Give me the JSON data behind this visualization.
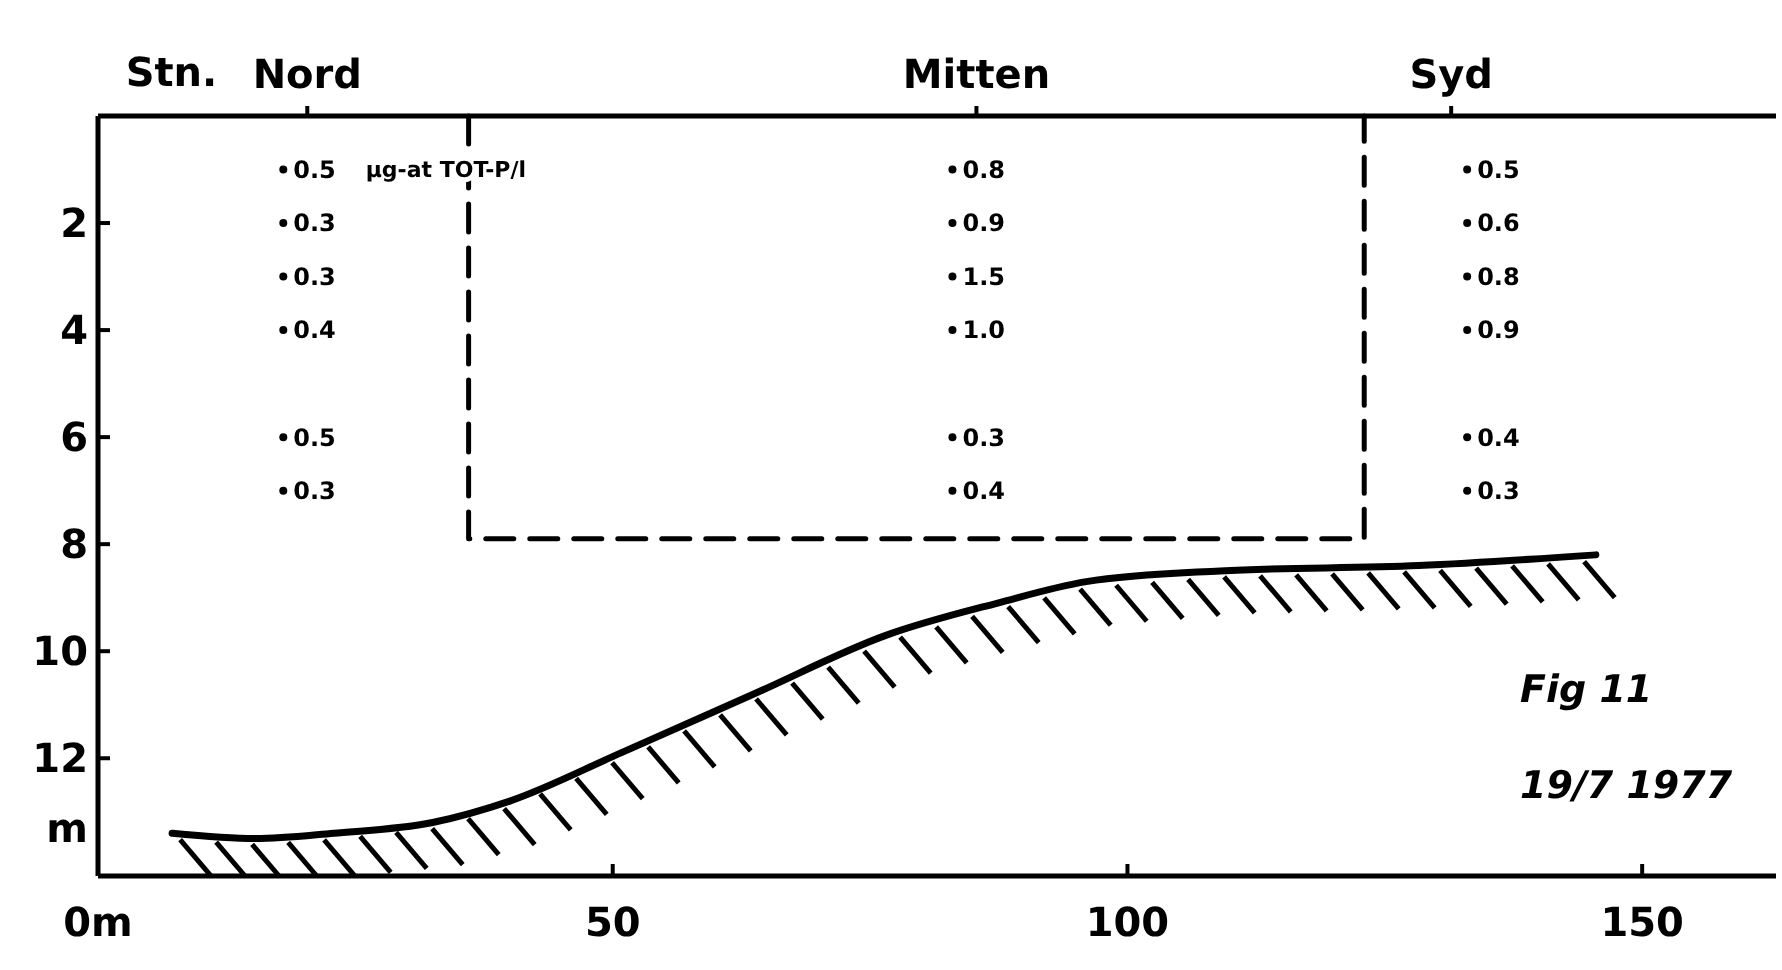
{
  "chart_data": {
    "type": "scatter",
    "marker": "circle",
    "xlim": [
      0,
      163
    ],
    "xticks": [
      {
        "value": 0,
        "label": "0m"
      },
      50,
      100,
      150
    ],
    "ylim": [
      14.2,
      0
    ],
    "yticks": [
      2,
      4,
      6,
      8,
      10,
      12
    ],
    "ylabel": "m",
    "annotations": [
      "Stn.",
      "Nord",
      "Mitten",
      "Syd",
      "µg-at TOT-P/l",
      "Fig 11",
      "19/7 1977",
      {
        "text": "0.5",
        "x": 18,
        "y": 1
      },
      {
        "text": "0.3",
        "x": 18,
        "y": 2
      },
      {
        "text": "0.3",
        "x": 18,
        "y": 3
      },
      {
        "text": "0.4",
        "x": 18,
        "y": 4
      },
      {
        "text": "0.5",
        "x": 18,
        "y": 6
      },
      {
        "text": "0.3",
        "x": 18,
        "y": 7
      },
      {
        "text": "0.8",
        "x": 83,
        "y": 1
      },
      {
        "text": "0.9",
        "x": 83,
        "y": 2
      },
      {
        "text": "1.5",
        "x": 83,
        "y": 3
      },
      {
        "text": "1.0",
        "x": 83,
        "y": 4
      },
      {
        "text": "0.3",
        "x": 83,
        "y": 6
      },
      {
        "text": "0.4",
        "x": 83,
        "y": 7
      },
      {
        "text": "0.5",
        "x": 133,
        "y": 1
      },
      {
        "text": "0.6",
        "x": 133,
        "y": 2
      },
      {
        "text": "0.8",
        "x": 133,
        "y": 3
      },
      {
        "text": "0.9",
        "x": 133,
        "y": 4
      },
      {
        "text": "0.4",
        "x": 133,
        "y": 6
      },
      {
        "text": "0.3",
        "x": 133,
        "y": 7
      }
    ],
    "series": [
      {
        "color": "#000000",
        "x": [
          18,
          18,
          18,
          18,
          18,
          18
        ],
        "values": [
          1,
          2,
          3,
          4,
          6,
          7
        ]
      },
      {
        "color": "#000000",
        "x": [
          83,
          83,
          83,
          83,
          83,
          83
        ],
        "values": [
          1,
          2,
          3,
          4,
          6,
          7
        ]
      },
      {
        "color": "#000000",
        "x": [
          133,
          133,
          133,
          133,
          133,
          133
        ],
        "values": [
          1,
          2,
          3,
          4,
          6,
          7
        ]
      },
      {
        "type": "line",
        "marker": "none",
        "color": "#000000",
        "line_style": "dashed",
        "x": [
          36,
          36,
          123,
          123
        ],
        "values": [
          0,
          7.9,
          7.9,
          0
        ]
      },
      {
        "type": "line",
        "marker": "none",
        "color": "#000000",
        "line_style": "solid",
        "x": [
          7.2,
          15.3,
          22.9,
          32.5,
          40,
          50.8,
          63.7,
          76.6,
          87.4,
          96,
          109,
          128.3,
          145.5
        ],
        "values": [
          13.4,
          13.5,
          13.4,
          13.2,
          12.8,
          11.9,
          10.8,
          9.7,
          9.1,
          8.7,
          8.5,
          8.4,
          8.2
        ]
      }
    ]
  }
}
